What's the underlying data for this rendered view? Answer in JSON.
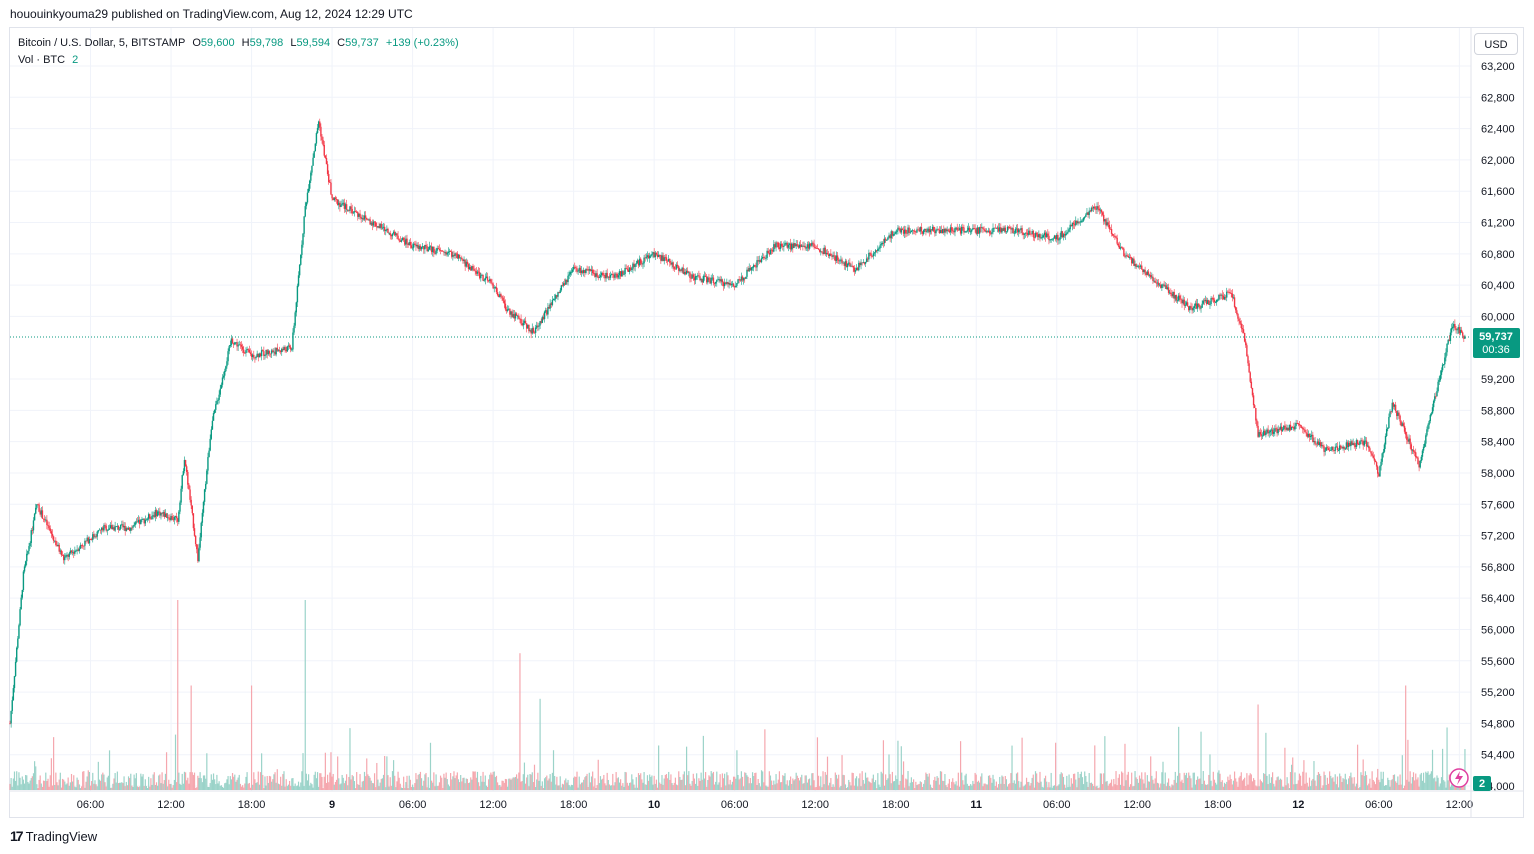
{
  "header": {
    "publisher_text": "hououinkyouma29 published on TradingView.com, Aug 12, 2024 12:29 UTC"
  },
  "legend": {
    "symbol": "Bitcoin / U.S. Dollar, 5, BITSTAMP",
    "open_label": "O",
    "open": "59,600",
    "high_label": "H",
    "high": "59,798",
    "low_label": "L",
    "low": "59,594",
    "close_label": "C",
    "close": "59,737",
    "change": "+139 (+0.23%)",
    "volume_label": "Vol · BTC",
    "volume_value": "2"
  },
  "price_scale": {
    "currency": "USD",
    "last_price": "59,737",
    "countdown": "00:36",
    "volume_badge": "2"
  },
  "footer": {
    "brand": "TradingView"
  },
  "colors": {
    "up": "#089981",
    "down": "#f23645",
    "volume_up": "#9bd3c9",
    "volume_down": "#f5a7ae",
    "grid": "#f0f3fa",
    "axis_text": "#131722",
    "last_price_line": "#089981"
  },
  "chart_data": {
    "type": "candlestick",
    "timeframe": "5",
    "exchange": "BITSTAMP",
    "pair": "BTCUSD",
    "y_ticks": [
      54000,
      54400,
      54800,
      55200,
      55600,
      56000,
      56400,
      56800,
      57200,
      57600,
      58000,
      58400,
      58800,
      59200,
      60000,
      60400,
      60800,
      61200,
      61600,
      62000,
      62400,
      62800,
      63200
    ],
    "y_tick_labels": [
      "54,000",
      "54,400",
      "54,800",
      "55,200",
      "55,600",
      "56,000",
      "56,400",
      "56,800",
      "57,200",
      "57,600",
      "58,000",
      "58,400",
      "58,800",
      "59,200",
      "60,000",
      "60,400",
      "60,800",
      "61,200",
      "61,600",
      "62,000",
      "62,400",
      "62,800",
      "63,200"
    ],
    "ylim": [
      54000,
      63200
    ],
    "x_ticks": [
      "06:00",
      "12:00",
      "18:00",
      "9",
      "06:00",
      "12:00",
      "18:00",
      "10",
      "06:00",
      "12:00",
      "18:00",
      "11",
      "06:00",
      "12:00",
      "18:00",
      "12",
      "06:00",
      "12:00"
    ],
    "x_tick_bold": [
      false,
      false,
      false,
      true,
      false,
      false,
      false,
      true,
      false,
      false,
      false,
      true,
      false,
      false,
      false,
      true,
      false,
      false
    ],
    "last_price": 59737,
    "price_path": [
      {
        "t": "Aug 8 00:00",
        "v": 54800
      },
      {
        "t": "Aug 8 01:00",
        "v": 56700
      },
      {
        "t": "Aug 8 02:00",
        "v": 57600
      },
      {
        "t": "Aug 8 04:00",
        "v": 56900
      },
      {
        "t": "Aug 8 07:00",
        "v": 57300
      },
      {
        "t": "Aug 8 09:00",
        "v": 57300
      },
      {
        "t": "Aug 8 11:00",
        "v": 57500
      },
      {
        "t": "Aug 8 12:30",
        "v": 57400
      },
      {
        "t": "Aug 8 13:00",
        "v": 58200
      },
      {
        "t": "Aug 8 14:00",
        "v": 56900
      },
      {
        "t": "Aug 8 15:00",
        "v": 58600
      },
      {
        "t": "Aug 8 16:30",
        "v": 59700
      },
      {
        "t": "Aug 8 18:00",
        "v": 59500
      },
      {
        "t": "Aug 8 21:00",
        "v": 59600
      },
      {
        "t": "Aug 8 22:00",
        "v": 61400
      },
      {
        "t": "Aug 8 23:00",
        "v": 62500
      },
      {
        "t": "Aug 9 00:00",
        "v": 61500
      },
      {
        "t": "Aug 9 03:00",
        "v": 61200
      },
      {
        "t": "Aug 9 06:00",
        "v": 60900
      },
      {
        "t": "Aug 9 09:00",
        "v": 60800
      },
      {
        "t": "Aug 9 12:00",
        "v": 60400
      },
      {
        "t": "Aug 9 13:00",
        "v": 60100
      },
      {
        "t": "Aug 9 15:00",
        "v": 59800
      },
      {
        "t": "Aug 9 18:00",
        "v": 60600
      },
      {
        "t": "Aug 9 21:00",
        "v": 60500
      },
      {
        "t": "Aug 10 00:00",
        "v": 60800
      },
      {
        "t": "Aug 10 03:00",
        "v": 60500
      },
      {
        "t": "Aug 10 06:00",
        "v": 60400
      },
      {
        "t": "Aug 10 09:00",
        "v": 60900
      },
      {
        "t": "Aug 10 12:00",
        "v": 60900
      },
      {
        "t": "Aug 10 15:00",
        "v": 60600
      },
      {
        "t": "Aug 10 18:00",
        "v": 61100
      },
      {
        "t": "Aug 11 00:00",
        "v": 61100
      },
      {
        "t": "Aug 11 03:00",
        "v": 61100
      },
      {
        "t": "Aug 11 06:00",
        "v": 61000
      },
      {
        "t": "Aug 11 09:00",
        "v": 61400
      },
      {
        "t": "Aug 11 11:00",
        "v": 60800
      },
      {
        "t": "Aug 11 13:00",
        "v": 60500
      },
      {
        "t": "Aug 11 16:00",
        "v": 60100
      },
      {
        "t": "Aug 11 19:00",
        "v": 60300
      },
      {
        "t": "Aug 11 20:00",
        "v": 59700
      },
      {
        "t": "Aug 11 21:00",
        "v": 58500
      },
      {
        "t": "Aug 12 00:00",
        "v": 58600
      },
      {
        "t": "Aug 12 02:00",
        "v": 58300
      },
      {
        "t": "Aug 12 05:00",
        "v": 58400
      },
      {
        "t": "Aug 12 06:00",
        "v": 58000
      },
      {
        "t": "Aug 12 07:00",
        "v": 58900
      },
      {
        "t": "Aug 12 09:00",
        "v": 58100
      },
      {
        "t": "Aug 12 10:30",
        "v": 59200
      },
      {
        "t": "Aug 12 11:30",
        "v": 59900
      },
      {
        "t": "Aug 12 12:25",
        "v": 59737
      }
    ],
    "volume_spikes": [
      {
        "t": "Aug 8 12:30",
        "v": 1.0
      },
      {
        "t": "Aug 8 13:30",
        "v": 0.55
      },
      {
        "t": "Aug 8 18:00",
        "v": 0.55
      },
      {
        "t": "Aug 8 22:00",
        "v": 1.0
      },
      {
        "t": "Aug 9 14:00",
        "v": 0.72
      },
      {
        "t": "Aug 9 15:30",
        "v": 0.48
      },
      {
        "t": "Aug 11 21:00",
        "v": 0.45
      },
      {
        "t": "Aug 12 08:00",
        "v": 0.55
      }
    ]
  }
}
